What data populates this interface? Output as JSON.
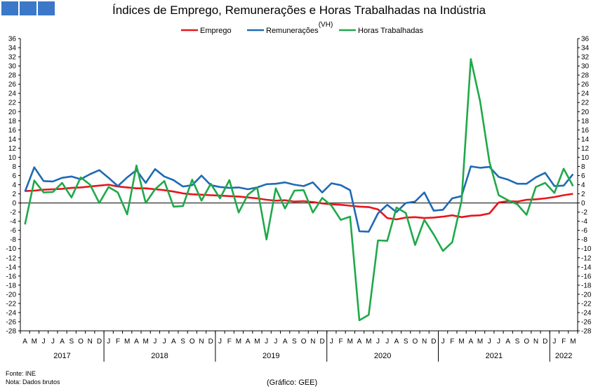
{
  "header": {
    "logo_icon": "ine-logo-icon",
    "title": "Índices de Emprego, Remunerações e Horas Trabalhadas na Indústria",
    "subtitle": "(VH)"
  },
  "footer": {
    "source": "Fonte: INE",
    "note": "Nota: Dados brutos",
    "credit": "(Gráfico: GEE)"
  },
  "chart_data": {
    "type": "line",
    "title": "Índices de Emprego, Remunerações e Horas Trabalhadas na Indústria",
    "subtitle": "(VH)",
    "ylim": [
      -28,
      36
    ],
    "ytick_step": 2,
    "grid": false,
    "legend_position": "top-center",
    "x": [
      "A",
      "M",
      "J",
      "J",
      "A",
      "S",
      "O",
      "N",
      "D",
      "J",
      "F",
      "M",
      "A",
      "M",
      "J",
      "J",
      "A",
      "S",
      "O",
      "N",
      "D",
      "J",
      "F",
      "M",
      "A",
      "M",
      "J",
      "J",
      "A",
      "S",
      "O",
      "N",
      "D",
      "J",
      "F",
      "M",
      "A",
      "M",
      "J",
      "J",
      "A",
      "S",
      "O",
      "N",
      "D",
      "J",
      "F",
      "M",
      "A",
      "M",
      "J",
      "J",
      "A",
      "S",
      "O",
      "N",
      "D",
      "J",
      "F",
      "M"
    ],
    "years": [
      {
        "label": "2017",
        "start": 0,
        "end": 8
      },
      {
        "label": "2018",
        "start": 9,
        "end": 20
      },
      {
        "label": "2019",
        "start": 21,
        "end": 32
      },
      {
        "label": "2020",
        "start": 33,
        "end": 44
      },
      {
        "label": "2021",
        "start": 45,
        "end": 56
      },
      {
        "label": "2022",
        "start": 57,
        "end": 59
      }
    ],
    "series": [
      {
        "name": "Emprego",
        "color": "#e8141b",
        "values": [
          2.6,
          2.7,
          2.9,
          3.0,
          3.1,
          3.3,
          3.4,
          3.6,
          3.8,
          4.0,
          3.6,
          3.4,
          3.2,
          3.2,
          3.0,
          2.8,
          2.5,
          2.1,
          1.9,
          1.8,
          1.7,
          1.6,
          1.5,
          1.4,
          1.2,
          1.0,
          0.7,
          0.5,
          0.6,
          0.3,
          0.4,
          0.2,
          -0.1,
          -0.3,
          -0.4,
          -0.6,
          -0.8,
          -0.9,
          -1.4,
          -3.3,
          -3.6,
          -3.2,
          -3.1,
          -3.3,
          -3.2,
          -3.0,
          -2.7,
          -3.1,
          -2.8,
          -2.7,
          -2.3,
          0.1,
          0.4,
          0.3,
          0.7,
          0.8,
          1.0,
          1.3,
          1.7,
          2.0
        ]
      },
      {
        "name": "Remunerações",
        "color": "#1f6ab5",
        "values": [
          2.5,
          7.8,
          4.8,
          4.7,
          5.5,
          5.8,
          5.2,
          6.3,
          7.2,
          5.5,
          3.7,
          5.6,
          7.2,
          4.4,
          7.4,
          5.8,
          5.0,
          3.6,
          3.9,
          6.0,
          3.9,
          3.5,
          3.3,
          3.4,
          3.0,
          3.4,
          4.1,
          4.2,
          4.5,
          4.0,
          3.7,
          4.5,
          2.3,
          4.3,
          3.9,
          2.8,
          -6.2,
          -6.3,
          -2.3,
          -0.4,
          -2.0,
          0.0,
          0.3,
          2.3,
          -1.7,
          -1.5,
          1.0,
          1.5,
          8.0,
          7.7,
          7.9,
          5.7,
          5.1,
          4.2,
          4.2,
          5.6,
          6.6,
          3.7,
          3.8,
          6.3
        ]
      },
      {
        "name": "Horas Trabalhadas",
        "color": "#1fa94a",
        "values": [
          -4.7,
          4.9,
          2.3,
          2.4,
          4.4,
          1.2,
          5.6,
          4.0,
          0.0,
          3.5,
          2.3,
          -2.5,
          8.2,
          0.0,
          3.0,
          4.8,
          -0.8,
          -0.7,
          5.1,
          0.5,
          4.2,
          1.0,
          5.0,
          -2.1,
          1.8,
          3.4,
          -8.0,
          3.2,
          -1.2,
          2.7,
          2.8,
          -2.1,
          1.1,
          -0.6,
          -3.7,
          -3.0,
          -25.7,
          -24.5,
          -8.2,
          -8.3,
          -1.0,
          -2.2,
          -9.2,
          -3.7,
          -6.9,
          -10.5,
          -8.6,
          0.5,
          31.5,
          22.3,
          9.0,
          1.7,
          0.6,
          -0.3,
          -2.6,
          3.5,
          4.4,
          2.2,
          7.5,
          3.7
        ]
      }
    ]
  }
}
